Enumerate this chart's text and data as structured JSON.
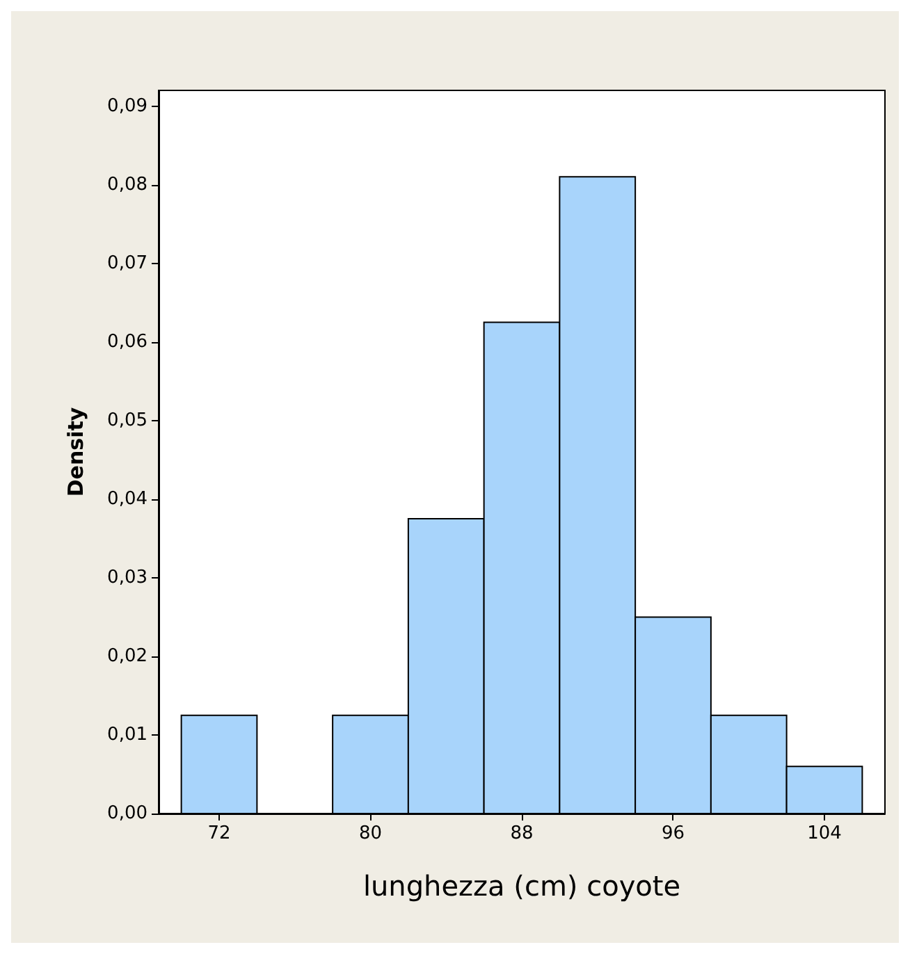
{
  "chart_data": {
    "type": "histogram",
    "xlabel": "lunghezza (cm) coyote",
    "ylabel": "Density",
    "color": "#a8d4fb",
    "bins": [
      70,
      74,
      78,
      82,
      86,
      90,
      94,
      98,
      102,
      106
    ],
    "values": [
      0.0125,
      0,
      0.0125,
      0.0375,
      0.0625,
      0.081,
      0.025,
      0.0125,
      0.006
    ],
    "xlim": [
      68.8,
      107.2
    ],
    "xticks": [
      72,
      80,
      88,
      96,
      104
    ],
    "ylim": [
      0,
      0.092
    ],
    "yticks": [
      {
        "value": 0,
        "label": "0,00"
      },
      {
        "value": 0.01,
        "label": "0,01"
      },
      {
        "value": 0.02,
        "label": "0,02"
      },
      {
        "value": 0.03,
        "label": "0,03"
      },
      {
        "value": 0.04,
        "label": "0,04"
      },
      {
        "value": 0.05,
        "label": "0,05"
      },
      {
        "value": 0.06,
        "label": "0,06"
      },
      {
        "value": 0.07,
        "label": "0,07"
      },
      {
        "value": 0.08,
        "label": "0,08"
      },
      {
        "value": 0.09,
        "label": "0,09"
      }
    ],
    "grid": false
  }
}
